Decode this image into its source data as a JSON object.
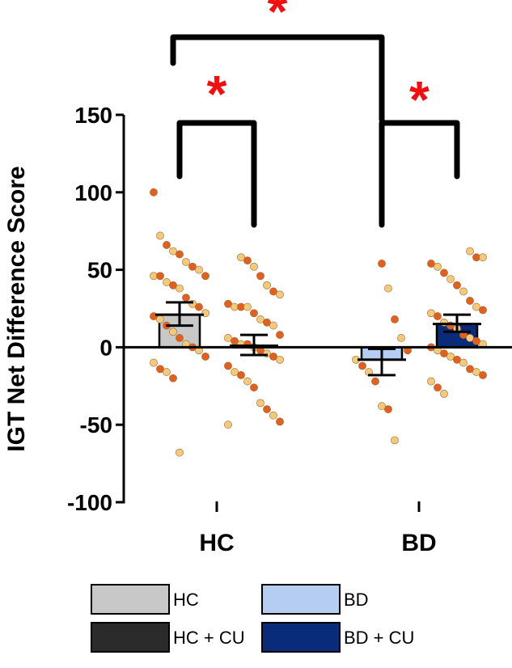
{
  "chart_data": {
    "type": "bar",
    "title": "",
    "ylabel": "IGT Net Difference Score",
    "xlabel": "",
    "ylim": [
      -100,
      150
    ],
    "yticks": [
      -100,
      -50,
      0,
      50,
      100,
      150
    ],
    "groups": [
      "HC",
      "BD"
    ],
    "series": [
      {
        "name": "HC",
        "group": "HC",
        "mean": 21,
        "sem_low": 14,
        "sem_high": 29,
        "fill": "#c8c8c8",
        "points": [
          100,
          72,
          66,
          62,
          60,
          55,
          52,
          50,
          46,
          46,
          46,
          42,
          40,
          38,
          32,
          28,
          26,
          22,
          20,
          18,
          14,
          10,
          6,
          2,
          0,
          -2,
          -6,
          -10,
          -14,
          -16,
          -20,
          -68
        ]
      },
      {
        "name": "HC + CU",
        "group": "HC",
        "mean": 1,
        "sem_low": -5,
        "sem_high": 8,
        "fill": "#2b2b2b",
        "points": [
          58,
          56,
          52,
          46,
          40,
          36,
          34,
          28,
          26,
          26,
          26,
          22,
          18,
          16,
          14,
          8,
          6,
          4,
          2,
          2,
          0,
          -2,
          -4,
          -6,
          -8,
          -12,
          -16,
          -18,
          -22,
          -26,
          -36,
          -40,
          -44,
          -48,
          -50
        ]
      },
      {
        "name": "BD",
        "group": "BD",
        "mean": -8,
        "sem_low": -18,
        "sem_high": -1,
        "fill": "#b5cdf0",
        "points": [
          54,
          38,
          18,
          6,
          -2,
          -8,
          -12,
          -16,
          -22,
          -38,
          -40,
          -60
        ]
      },
      {
        "name": "BD + CU",
        "group": "BD",
        "mean": 15,
        "sem_low": 10,
        "sem_high": 21,
        "fill": "#0a2a7a",
        "points": [
          62,
          58,
          58,
          54,
          52,
          48,
          44,
          40,
          36,
          30,
          26,
          24,
          22,
          20,
          16,
          14,
          12,
          8,
          6,
          4,
          2,
          0,
          -2,
          -4,
          -6,
          -8,
          -10,
          -14,
          -16,
          -18,
          -22,
          -26,
          -30
        ]
      }
    ],
    "significance": [
      {
        "from": "HC",
        "to": "HC + CU",
        "label": "*"
      },
      {
        "from": "BD",
        "to": "BD + CU",
        "label": "*"
      },
      {
        "from": "HC",
        "to": "BD",
        "label": "*"
      }
    ],
    "legend_placement": "bottom",
    "point_colors": [
      "#e0601f",
      "#f5c97a"
    ],
    "sig_color": "#ee1111"
  }
}
